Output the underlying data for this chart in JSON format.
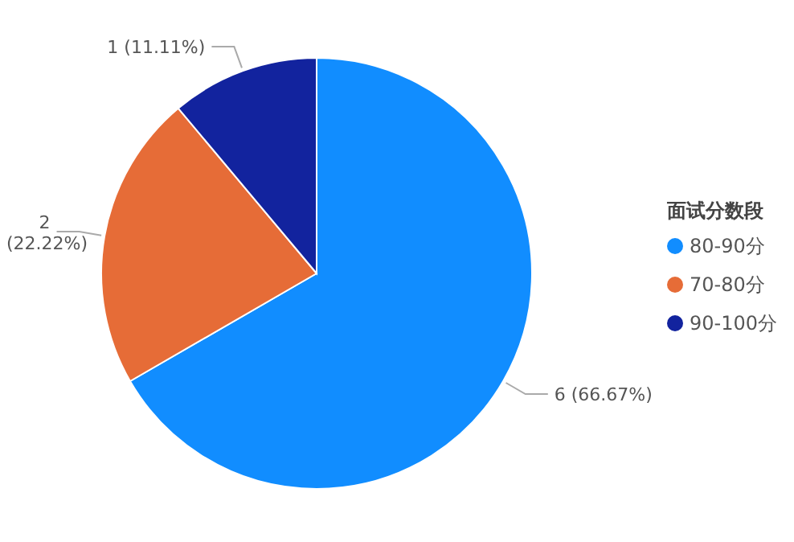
{
  "chart_data": {
    "type": "pie",
    "legend_title": "面试分数段",
    "legend": "right",
    "categories": [
      "80-90分",
      "70-80分",
      "90-100分"
    ],
    "values": [
      6,
      2,
      1
    ],
    "colors": [
      "#118dff",
      "#e66c37",
      "#12239e"
    ],
    "value_labels": [
      "6 (66.67%)",
      "2 (22.22%)",
      "1 (11.11%)"
    ]
  }
}
